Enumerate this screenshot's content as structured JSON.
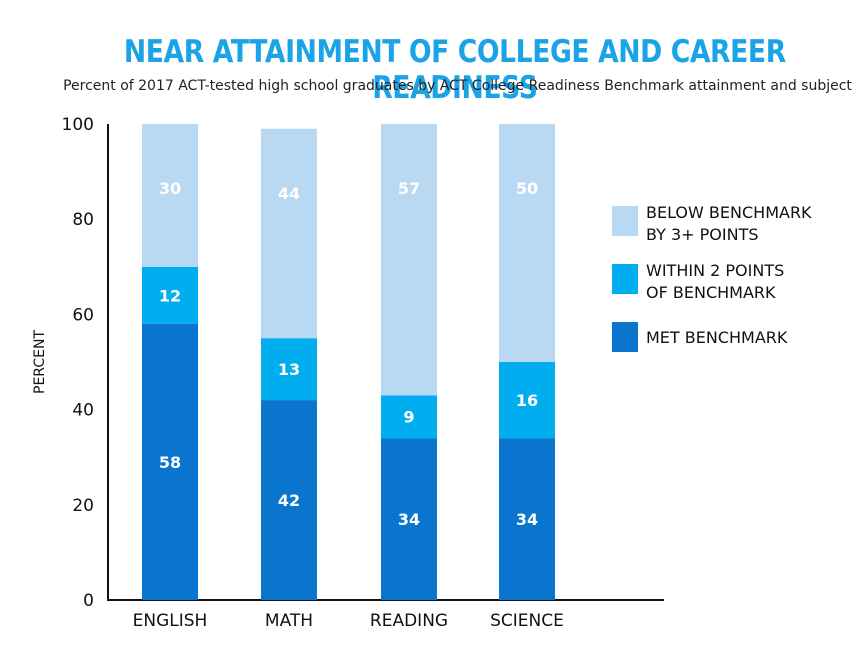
{
  "colors": {
    "title": "#1aa3e6",
    "below": "#b9d8f2",
    "within": "#00adef",
    "met": "#0a75cf"
  },
  "chart_data": {
    "type": "bar",
    "stacked": true,
    "title": "NEAR ATTAINMENT OF COLLEGE AND CAREER READINESS",
    "subtitle": "Percent of 2017 ACT-tested high school graduates by ACT College Readiness Benchmark attainment and subject",
    "ylabel": "PERCENT",
    "xlabel": "",
    "ylim": [
      0,
      100
    ],
    "yticks": [
      0,
      20,
      40,
      60,
      80,
      100
    ],
    "categories": [
      "ENGLISH",
      "MATH",
      "READING",
      "SCIENCE"
    ],
    "series": [
      {
        "name": "MET BENCHMARK",
        "values": [
          58,
          42,
          34,
          34
        ]
      },
      {
        "name": "WITHIN 2 POINTS OF BENCHMARK",
        "values": [
          12,
          13,
          9,
          16
        ]
      },
      {
        "name": "BELOW BENCHMARK BY 3+ POINTS",
        "values": [
          30,
          44,
          57,
          50
        ]
      }
    ],
    "legend": {
      "placement": "right",
      "entries": [
        {
          "lines": [
            "BELOW BENCHMARK",
            "BY 3+ POINTS"
          ]
        },
        {
          "lines": [
            "WITHIN 2 POINTS",
            "OF BENCHMARK"
          ]
        },
        {
          "lines": [
            "MET BENCHMARK"
          ]
        }
      ]
    },
    "grid": false
  }
}
